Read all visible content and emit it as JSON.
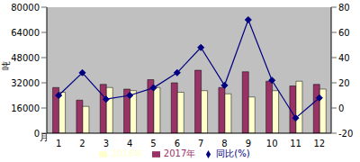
{
  "chart_data": {
    "type": "bar",
    "x_label": "月",
    "y_label": "吨",
    "categories": [
      "1",
      "2",
      "3",
      "4",
      "5",
      "6",
      "7",
      "8",
      "9",
      "10",
      "11",
      "12"
    ],
    "series": [
      {
        "name": "2017年",
        "color": "#993366",
        "type": "bar",
        "values": [
          29000,
          21000,
          31000,
          28000,
          34000,
          32000,
          40000,
          29000,
          39000,
          33000,
          30000,
          31000
        ]
      },
      {
        "name": "2016年",
        "color": "#ffffcc",
        "type": "bar",
        "values": [
          26000,
          17000,
          29000,
          27000,
          29000,
          26000,
          27000,
          25000,
          23000,
          27000,
          33000,
          28000
        ]
      },
      {
        "name": "同比(%)",
        "color": "#000080",
        "type": "line",
        "axis": "y2",
        "marker": "diamond",
        "values": [
          10,
          28,
          7,
          10,
          16,
          28,
          48,
          18,
          70,
          22,
          -8,
          8
        ]
      }
    ],
    "ylim": [
      0,
      80000
    ],
    "yticks": [
      0,
      16000,
      32000,
      48000,
      64000,
      80000
    ],
    "y2lim": [
      -20,
      80
    ],
    "y2ticks": [
      -20,
      0,
      20,
      40,
      60,
      80
    ],
    "grid": false,
    "legend": "bottom"
  }
}
